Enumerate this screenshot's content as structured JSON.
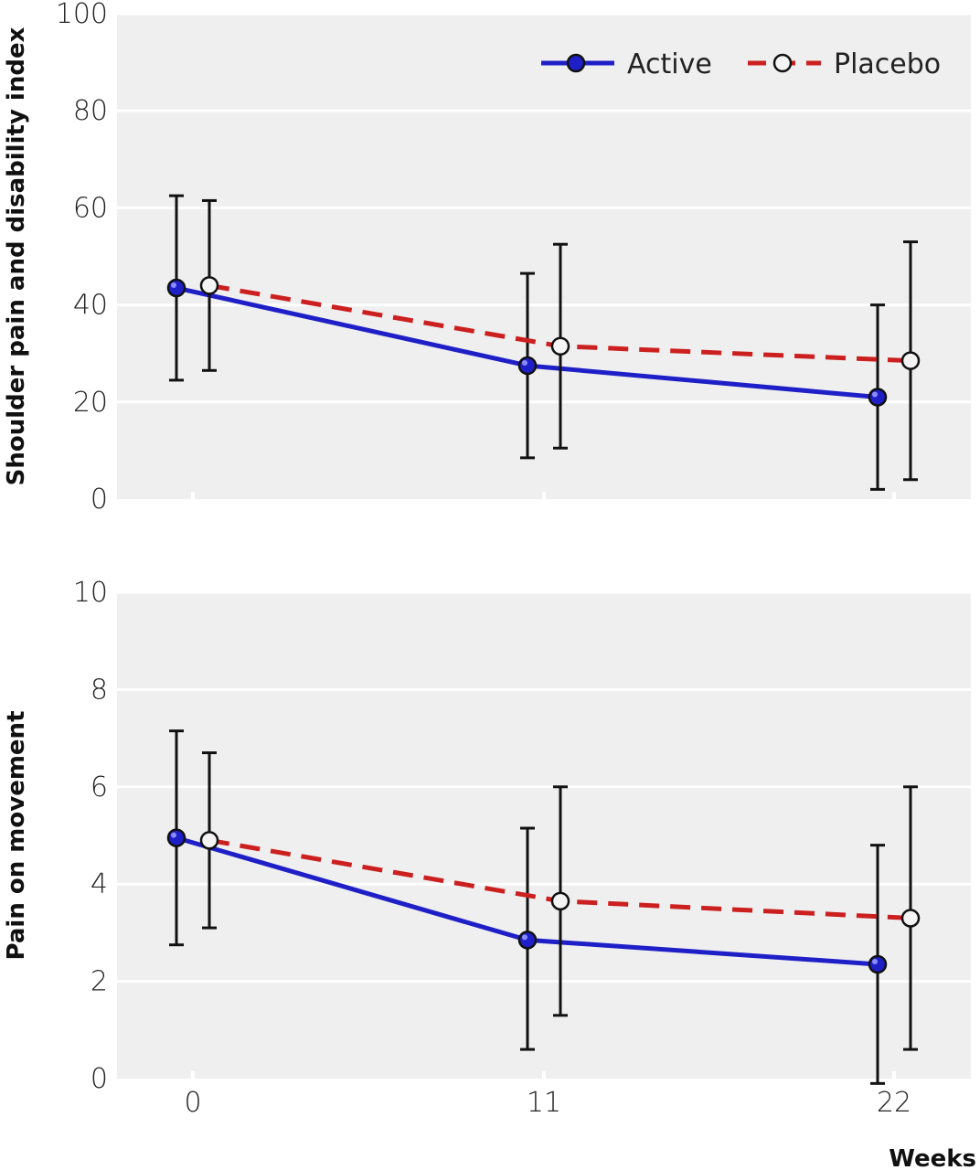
{
  "colors": {
    "panel_bg": "#efefef",
    "grid": "#ffffff",
    "active": "#1f1fc8",
    "placebo": "#cc1f1f",
    "errorbar": "#111111"
  },
  "legend": {
    "placement": "top-right",
    "items": [
      {
        "label": "Active",
        "style": "solid",
        "marker": "filled-blue-circle"
      },
      {
        "label": "Placebo",
        "style": "dashed",
        "marker": "open-circle"
      }
    ]
  },
  "xlabel": "Weeks",
  "chart_data": [
    {
      "type": "line",
      "ylabel": "Shoulder pain and disability index",
      "ylim": [
        0,
        100
      ],
      "yticks": [
        0,
        20,
        40,
        60,
        80,
        100
      ],
      "xticks": [
        "0",
        "11",
        "22"
      ],
      "x": [
        0,
        11,
        22
      ],
      "grid": true,
      "series": [
        {
          "name": "Active",
          "values": [
            43.5,
            27.5,
            21
          ],
          "lower": [
            24.5,
            8.5,
            2
          ],
          "upper": [
            62.5,
            46.5,
            40
          ]
        },
        {
          "name": "Placebo",
          "values": [
            44,
            31.5,
            28.5
          ],
          "lower": [
            26.5,
            10.5,
            4
          ],
          "upper": [
            61.5,
            52.5,
            53
          ]
        }
      ]
    },
    {
      "type": "line",
      "ylabel": "Pain on movement",
      "ylim": [
        0,
        10
      ],
      "yticks": [
        0,
        2,
        4,
        6,
        8,
        10
      ],
      "xticks": [
        "0",
        "11",
        "22"
      ],
      "x": [
        0,
        11,
        22
      ],
      "grid": true,
      "series": [
        {
          "name": "Active",
          "values": [
            4.95,
            2.85,
            2.35
          ],
          "lower": [
            2.75,
            0.6,
            -0.1
          ],
          "upper": [
            7.15,
            5.15,
            4.8
          ]
        },
        {
          "name": "Placebo",
          "values": [
            4.9,
            3.65,
            3.3
          ],
          "lower": [
            3.1,
            1.3,
            0.6
          ],
          "upper": [
            6.7,
            6.0,
            6.0
          ]
        }
      ]
    }
  ]
}
